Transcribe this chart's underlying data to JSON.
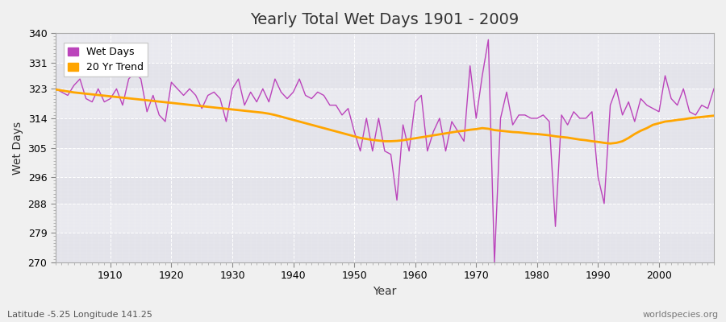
{
  "title": "Yearly Total Wet Days 1901 - 2009",
  "xlabel": "Year",
  "ylabel": "Wet Days",
  "subtitle_left": "Latitude -5.25 Longitude 141.25",
  "subtitle_right": "worldspecies.org",
  "legend_wet": "Wet Days",
  "legend_trend": "20 Yr Trend",
  "line_color": "#bb44bb",
  "trend_color": "#ffa500",
  "fig_bg_color": "#f0f0f0",
  "plot_bg_color": "#e8e8ee",
  "ylim": [
    270,
    340
  ],
  "yticks": [
    270,
    279,
    288,
    296,
    305,
    314,
    323,
    331,
    340
  ],
  "xlim": [
    1901,
    2009
  ],
  "xticks": [
    1910,
    1920,
    1930,
    1940,
    1950,
    1960,
    1970,
    1980,
    1990,
    2000
  ],
  "years": [
    1901,
    1902,
    1903,
    1904,
    1905,
    1906,
    1907,
    1908,
    1909,
    1910,
    1911,
    1912,
    1913,
    1914,
    1915,
    1916,
    1917,
    1918,
    1919,
    1920,
    1921,
    1922,
    1923,
    1924,
    1925,
    1926,
    1927,
    1928,
    1929,
    1930,
    1931,
    1932,
    1933,
    1934,
    1935,
    1936,
    1937,
    1938,
    1939,
    1940,
    1941,
    1942,
    1943,
    1944,
    1945,
    1946,
    1947,
    1948,
    1949,
    1950,
    1951,
    1952,
    1953,
    1954,
    1955,
    1956,
    1957,
    1958,
    1959,
    1960,
    1961,
    1962,
    1963,
    1964,
    1965,
    1966,
    1967,
    1968,
    1969,
    1970,
    1971,
    1972,
    1973,
    1974,
    1975,
    1976,
    1977,
    1978,
    1979,
    1980,
    1981,
    1982,
    1983,
    1984,
    1985,
    1986,
    1987,
    1988,
    1989,
    1990,
    1991,
    1992,
    1993,
    1994,
    1995,
    1996,
    1997,
    1998,
    1999,
    2000,
    2001,
    2002,
    2003,
    2004,
    2005,
    2006,
    2007,
    2008,
    2009
  ],
  "wet_days": [
    323,
    322,
    321,
    324,
    326,
    320,
    319,
    323,
    319,
    320,
    323,
    318,
    326,
    328,
    326,
    316,
    321,
    315,
    313,
    325,
    323,
    321,
    323,
    321,
    317,
    321,
    322,
    320,
    313,
    323,
    326,
    318,
    322,
    319,
    323,
    319,
    326,
    322,
    320,
    322,
    326,
    321,
    320,
    322,
    321,
    318,
    318,
    315,
    317,
    310,
    304,
    314,
    304,
    314,
    304,
    303,
    289,
    312,
    304,
    319,
    321,
    304,
    310,
    314,
    304,
    313,
    310,
    307,
    330,
    314,
    327,
    338,
    270,
    314,
    322,
    312,
    315,
    315,
    314,
    314,
    315,
    313,
    281,
    315,
    312,
    316,
    314,
    314,
    316,
    296,
    288,
    318,
    323,
    315,
    319,
    313,
    320,
    318,
    317,
    316,
    327,
    320,
    318,
    323,
    316,
    315,
    318,
    317,
    323
  ],
  "trend": [
    322.8,
    322.5,
    322.2,
    321.9,
    321.7,
    321.5,
    321.3,
    321.1,
    320.9,
    320.7,
    320.5,
    320.3,
    320.1,
    319.9,
    319.7,
    319.5,
    319.3,
    319.1,
    318.9,
    318.7,
    318.5,
    318.3,
    318.1,
    317.9,
    317.7,
    317.5,
    317.3,
    317.1,
    316.9,
    316.7,
    316.5,
    316.3,
    316.1,
    315.9,
    315.7,
    315.4,
    315.0,
    314.5,
    314.0,
    313.5,
    313.0,
    312.5,
    312.0,
    311.5,
    311.0,
    310.5,
    310.0,
    309.5,
    309.0,
    308.5,
    308.0,
    307.7,
    307.4,
    307.2,
    307.0,
    307.0,
    307.1,
    307.3,
    307.6,
    307.9,
    308.2,
    308.5,
    308.8,
    309.1,
    309.4,
    309.7,
    310.0,
    310.2,
    310.5,
    310.7,
    311.0,
    310.8,
    310.4,
    310.2,
    310.0,
    309.8,
    309.7,
    309.5,
    309.3,
    309.2,
    309.0,
    308.8,
    308.5,
    308.3,
    308.1,
    307.8,
    307.5,
    307.3,
    307.0,
    306.8,
    306.5,
    306.3,
    306.5,
    307.0,
    308.0,
    309.2,
    310.2,
    311.0,
    312.0,
    312.5,
    313.0,
    313.2,
    313.5,
    313.7,
    314.0,
    314.2,
    314.4,
    314.6,
    314.8
  ]
}
